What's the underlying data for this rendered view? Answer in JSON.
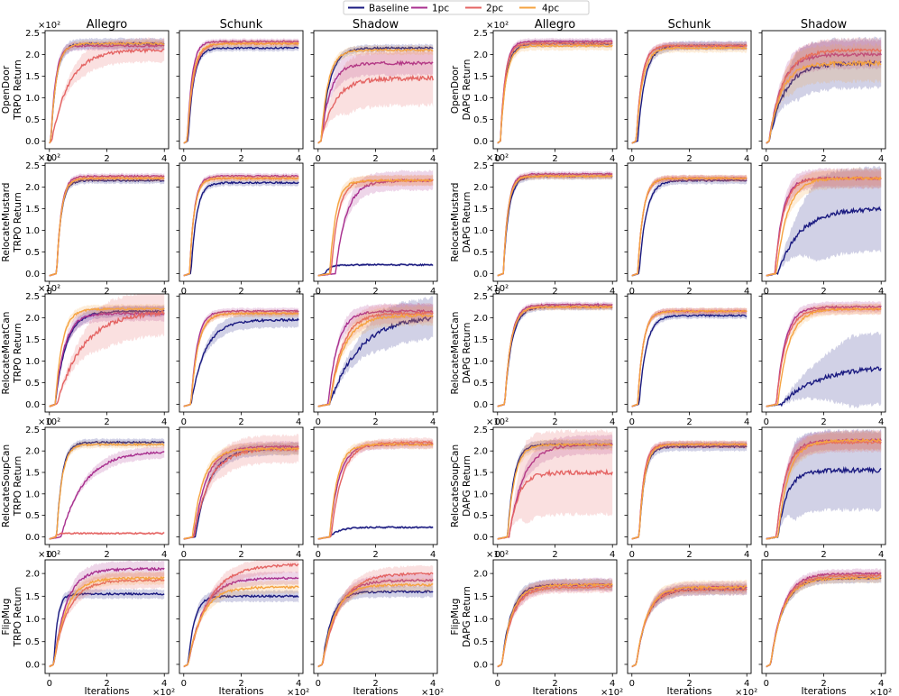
{
  "legend": {
    "entries": [
      "Baseline",
      "1pc",
      "2pc",
      "4pc"
    ],
    "colors": [
      "#1a1a80",
      "#a8308f",
      "#e46463",
      "#f5a340"
    ]
  },
  "chart_data": {
    "type": "line",
    "grid_columns": [
      "Allegro",
      "Schunk",
      "Shadow",
      "Allegro",
      "Schunk",
      "Shadow"
    ],
    "algorithms": [
      "TRPO",
      "DAPG"
    ],
    "tasks": [
      "OpenDoor",
      "RelocateMustard",
      "RelocateMeatCan",
      "RelocateSoupCan",
      "FlipMug"
    ],
    "row_labels": [
      [
        "OpenDoor",
        "RelocateMustard",
        "RelocateMeatCan",
        "RelocateSoupCan",
        "FlipMug"
      ],
      [
        "TRPO Return",
        "DAPG Return"
      ]
    ],
    "xlabel": "Iterations",
    "x_multiplier": "×10²",
    "y_multiplier": "×10²",
    "xlim": [
      -0.15,
      4.15
    ],
    "xticks": [
      "0",
      "2",
      "4"
    ],
    "ylims": [
      [
        -0.18,
        2.55
      ],
      [
        -0.18,
        2.55
      ],
      [
        -0.18,
        2.55
      ],
      [
        -0.18,
        2.55
      ],
      [
        -0.2,
        2.3
      ]
    ],
    "yticks": [
      [
        "0.0",
        "0.5",
        "1.0",
        "1.5",
        "2.0",
        "2.5"
      ],
      [
        "0.0",
        "0.5",
        "1.0",
        "1.5",
        "2.0",
        "2.5"
      ],
      [
        "0.0",
        "0.5",
        "1.0",
        "1.5",
        "2.0",
        "2.5"
      ],
      [
        "0.0",
        "0.5",
        "1.0",
        "1.5",
        "2.0",
        "2.5"
      ],
      [
        "0.0",
        "0.5",
        "1.0",
        "1.5",
        "2.0"
      ]
    ],
    "series_names": [
      "Baseline",
      "1pc",
      "2pc",
      "4pc"
    ],
    "curve_params_note": "each curve: [final value, rise time (x100 iters), onset (x100 iters), shaded band half-width]",
    "curves": {
      "TRPO": [
        [
          [
            [
              2.25,
              0.35,
              0.05,
              0.1
            ],
            [
              2.2,
              0.3,
              0.05,
              0.08
            ],
            [
              2.1,
              1.1,
              0.08,
              0.25
            ],
            [
              2.25,
              0.35,
              0.05,
              0.06
            ]
          ],
          [
            [
              2.15,
              0.35,
              0.15,
              0.05
            ],
            [
              2.3,
              0.3,
              0.12,
              0.04
            ],
            [
              2.25,
              0.4,
              0.12,
              0.04
            ],
            [
              2.25,
              0.35,
              0.12,
              0.06
            ]
          ],
          [
            [
              2.15,
              0.55,
              0.1,
              0.06
            ],
            [
              1.8,
              0.6,
              0.1,
              0.25
            ],
            [
              1.45,
              0.9,
              0.1,
              0.6
            ],
            [
              2.1,
              0.45,
              0.1,
              0.08
            ]
          ]
        ],
        [
          [
            [
              2.15,
              0.3,
              0.25,
              0.05
            ],
            [
              2.25,
              0.3,
              0.25,
              0.04
            ],
            [
              2.2,
              0.3,
              0.25,
              0.04
            ],
            [
              2.2,
              0.3,
              0.25,
              0.05
            ]
          ],
          [
            [
              2.1,
              0.35,
              0.25,
              0.05
            ],
            [
              2.25,
              0.3,
              0.2,
              0.04
            ],
            [
              2.2,
              0.3,
              0.2,
              0.04
            ],
            [
              2.2,
              0.3,
              0.2,
              0.05
            ]
          ],
          [
            [
              0.2,
              0.3,
              0.25,
              0.01
            ],
            [
              2.15,
              0.7,
              0.6,
              0.2
            ],
            [
              2.15,
              0.45,
              0.45,
              0.1
            ],
            [
              2.15,
              0.4,
              0.4,
              0.1
            ]
          ]
        ],
        [
          [
            [
              2.15,
              0.7,
              0.2,
              0.1
            ],
            [
              2.1,
              0.6,
              0.2,
              0.15
            ],
            [
              2.15,
              1.7,
              0.25,
              0.5
            ],
            [
              2.2,
              0.45,
              0.2,
              0.08
            ]
          ],
          [
            [
              1.95,
              0.9,
              0.25,
              0.15
            ],
            [
              2.15,
              0.4,
              0.25,
              0.05
            ],
            [
              2.1,
              0.45,
              0.25,
              0.05
            ],
            [
              2.1,
              0.45,
              0.25,
              0.06
            ]
          ],
          [
            [
              2.05,
              1.9,
              0.4,
              0.45
            ],
            [
              2.15,
              0.6,
              0.35,
              0.15
            ],
            [
              2.1,
              0.8,
              0.4,
              0.2
            ],
            [
              2.05,
              0.9,
              0.4,
              0.2
            ]
          ]
        ],
        [
          [
            [
              2.2,
              0.35,
              0.25,
              0.06
            ],
            [
              2.0,
              1.5,
              0.4,
              0.12
            ],
            [
              0.08,
              0.2,
              0.2,
              0.01
            ],
            [
              2.15,
              0.35,
              0.25,
              0.06
            ]
          ],
          [
            [
              2.05,
              0.9,
              0.4,
              0.12
            ],
            [
              2.1,
              0.8,
              0.35,
              0.1
            ],
            [
              2.05,
              1.0,
              0.35,
              0.3
            ],
            [
              2.05,
              0.7,
              0.3,
              0.12
            ]
          ],
          [
            [
              0.22,
              0.6,
              0.4,
              0.01
            ],
            [
              2.15,
              0.6,
              0.4,
              0.08
            ],
            [
              2.2,
              0.7,
              0.45,
              0.08
            ],
            [
              2.15,
              0.5,
              0.4,
              0.08
            ]
          ]
        ],
        [
          [
            [
              1.55,
              0.25,
              0.15,
              0.08
            ],
            [
              2.1,
              0.8,
              0.15,
              0.15
            ],
            [
              1.85,
              0.9,
              0.15,
              0.15
            ],
            [
              1.9,
              0.8,
              0.15,
              0.12
            ]
          ],
          [
            [
              1.5,
              0.4,
              0.15,
              0.1
            ],
            [
              1.9,
              1.0,
              0.15,
              0.12
            ],
            [
              2.2,
              1.3,
              0.15,
              0.15
            ],
            [
              1.7,
              0.9,
              0.15,
              0.12
            ]
          ],
          [
            [
              1.6,
              0.6,
              0.15,
              0.1
            ],
            [
              1.85,
              0.9,
              0.15,
              0.12
            ],
            [
              2.0,
              1.1,
              0.15,
              0.15
            ],
            [
              1.75,
              0.8,
              0.15,
              0.12
            ]
          ]
        ]
      ],
      "DAPG": [
        [
          [
            [
              2.25,
              0.35,
              0.1,
              0.06
            ],
            [
              2.3,
              0.3,
              0.1,
              0.05
            ],
            [
              2.25,
              0.3,
              0.1,
              0.06
            ],
            [
              2.2,
              0.35,
              0.1,
              0.08
            ]
          ],
          [
            [
              2.2,
              0.45,
              0.2,
              0.08
            ],
            [
              2.2,
              0.35,
              0.15,
              0.06
            ],
            [
              2.2,
              0.35,
              0.15,
              0.06
            ],
            [
              2.15,
              0.4,
              0.15,
              0.08
            ]
          ],
          [
            [
              1.8,
              1.0,
              0.1,
              0.55
            ],
            [
              2.0,
              0.8,
              0.1,
              0.3
            ],
            [
              2.1,
              0.9,
              0.1,
              0.25
            ],
            [
              1.8,
              0.8,
              0.1,
              0.4
            ]
          ]
        ],
        [
          [
            [
              2.25,
              0.35,
              0.2,
              0.05
            ],
            [
              2.3,
              0.3,
              0.2,
              0.04
            ],
            [
              2.25,
              0.3,
              0.2,
              0.04
            ],
            [
              2.25,
              0.3,
              0.2,
              0.05
            ]
          ],
          [
            [
              2.15,
              0.45,
              0.25,
              0.06
            ],
            [
              2.2,
              0.35,
              0.2,
              0.05
            ],
            [
              2.2,
              0.35,
              0.2,
              0.05
            ],
            [
              2.2,
              0.35,
              0.2,
              0.05
            ]
          ],
          [
            [
              1.5,
              1.4,
              0.4,
              0.95
            ],
            [
              2.2,
              0.5,
              0.3,
              0.2
            ],
            [
              2.2,
              0.55,
              0.3,
              0.15
            ],
            [
              2.2,
              0.7,
              0.35,
              0.2
            ]
          ]
        ],
        [
          [
            [
              2.25,
              0.45,
              0.25,
              0.05
            ],
            [
              2.3,
              0.4,
              0.25,
              0.04
            ],
            [
              2.25,
              0.4,
              0.25,
              0.04
            ],
            [
              2.25,
              0.4,
              0.25,
              0.05
            ]
          ],
          [
            [
              2.05,
              0.45,
              0.25,
              0.05
            ],
            [
              2.15,
              0.35,
              0.2,
              0.05
            ],
            [
              2.15,
              0.35,
              0.2,
              0.05
            ],
            [
              2.15,
              0.35,
              0.2,
              0.05
            ]
          ],
          [
            [
              0.9,
              2.5,
              0.5,
              0.8
            ],
            [
              2.25,
              0.55,
              0.35,
              0.1
            ],
            [
              2.2,
              0.6,
              0.35,
              0.1
            ],
            [
              2.2,
              0.7,
              0.4,
              0.1
            ]
          ]
        ],
        [
          [
            [
              2.15,
              0.4,
              0.35,
              0.08
            ],
            [
              2.15,
              0.9,
              0.4,
              0.2
            ],
            [
              1.5,
              0.6,
              0.4,
              0.95
            ],
            [
              2.15,
              0.45,
              0.35,
              0.1
            ]
          ],
          [
            [
              2.1,
              0.35,
              0.25,
              0.08
            ],
            [
              2.15,
              0.3,
              0.25,
              0.06
            ],
            [
              2.15,
              0.3,
              0.25,
              0.06
            ],
            [
              2.15,
              0.35,
              0.25,
              0.06
            ]
          ],
          [
            [
              1.55,
              0.6,
              0.4,
              0.9
            ],
            [
              2.25,
              0.6,
              0.35,
              0.2
            ],
            [
              2.2,
              0.6,
              0.35,
              0.2
            ],
            [
              2.25,
              0.7,
              0.4,
              0.2
            ]
          ]
        ],
        [
          [
            [
              1.75,
              0.6,
              0.15,
              0.1
            ],
            [
              1.75,
              0.7,
              0.15,
              0.12
            ],
            [
              1.7,
              0.7,
              0.15,
              0.1
            ],
            [
              1.75,
              0.65,
              0.15,
              0.1
            ]
          ],
          [
            [
              1.65,
              0.7,
              0.15,
              0.1
            ],
            [
              1.7,
              0.7,
              0.15,
              0.1
            ],
            [
              1.65,
              0.7,
              0.15,
              0.1
            ],
            [
              1.7,
              0.7,
              0.15,
              0.12
            ]
          ],
          [
            [
              1.9,
              0.8,
              0.15,
              0.08
            ],
            [
              2.0,
              0.8,
              0.15,
              0.08
            ],
            [
              1.95,
              0.8,
              0.15,
              0.08
            ],
            [
              1.9,
              0.8,
              0.15,
              0.08
            ]
          ]
        ]
      ]
    }
  }
}
